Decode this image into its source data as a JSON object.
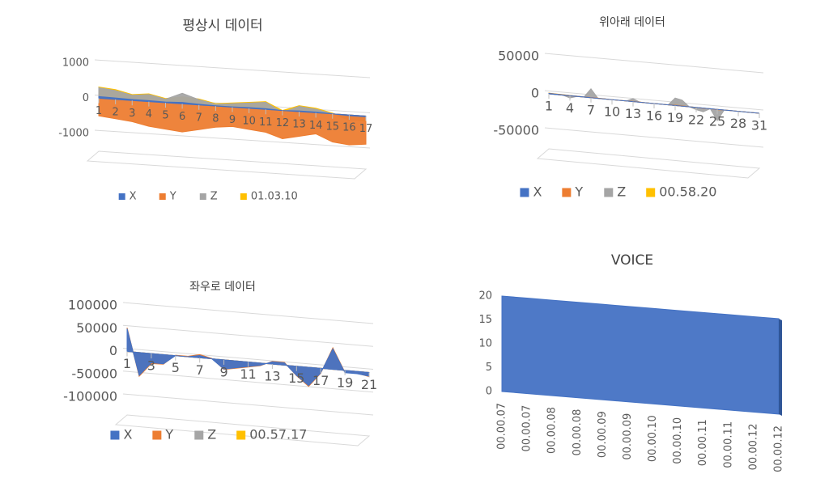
{
  "chart_data": [
    {
      "type": "area",
      "title": "평상시 데이터",
      "categories": [
        1,
        2,
        3,
        4,
        5,
        6,
        7,
        8,
        9,
        10,
        11,
        12,
        13,
        14,
        15,
        16,
        17
      ],
      "series": [
        {
          "name": "X",
          "color": "#4472c4",
          "values": [
            50,
            40,
            30,
            30,
            20,
            40,
            20,
            10,
            10,
            20,
            20,
            0,
            20,
            20,
            0,
            -20,
            -20
          ]
        },
        {
          "name": "Y",
          "color": "#ed7d31",
          "values": [
            -500,
            -550,
            -600,
            -700,
            -750,
            -800,
            -700,
            -600,
            -550,
            -600,
            -650,
            -800,
            -700,
            -600,
            -800,
            -850,
            -800
          ]
        },
        {
          "name": "Z",
          "color": "#a5a5a5",
          "values": [
            300,
            250,
            150,
            200,
            100,
            300,
            150,
            50,
            100,
            150,
            200,
            -50,
            150,
            100,
            0,
            -150,
            -100
          ]
        },
        {
          "name": "01.03.10",
          "color": "#ffc000",
          "values": [
            320,
            280,
            170,
            220,
            120,
            200,
            170,
            70,
            120,
            170,
            220,
            0,
            170,
            130,
            20,
            -120,
            -150
          ]
        }
      ],
      "ylim": [
        -1000,
        1000
      ],
      "yticks": [
        -1000,
        0,
        1000
      ],
      "grid": true,
      "legend": "bottom"
    },
    {
      "type": "area",
      "title": "위아래 데이터",
      "categories": [
        1,
        null,
        null,
        4,
        null,
        null,
        7,
        null,
        null,
        10,
        null,
        null,
        13,
        null,
        null,
        16,
        null,
        null,
        19,
        null,
        null,
        22,
        null,
        null,
        25,
        null,
        null,
        28,
        null,
        null,
        31
      ],
      "series": [
        {
          "name": "X",
          "color": "#4472c4",
          "values": [
            500,
            400,
            300,
            200,
            200,
            100,
            100,
            0,
            0,
            0,
            0,
            0,
            0,
            0,
            0,
            0,
            0,
            0,
            0,
            0,
            0,
            0,
            0,
            0,
            0,
            0,
            0,
            0,
            0,
            0,
            0
          ]
        },
        {
          "name": "Y",
          "color": "#ed7d31",
          "values": [
            800,
            600,
            500,
            300,
            300,
            200,
            300,
            200,
            100,
            0,
            0,
            0,
            300,
            100,
            0,
            0,
            0,
            0,
            500,
            400,
            0,
            0,
            -300,
            0,
            -500,
            0,
            0,
            0,
            0,
            0,
            0
          ]
        },
        {
          "name": "Z",
          "color": "#a5a5a5",
          "values": [
            0,
            0,
            0,
            -3000,
            0,
            0,
            12000,
            0,
            0,
            0,
            0,
            0,
            4000,
            0,
            0,
            0,
            0,
            0,
            10000,
            8000,
            0,
            -3000,
            -5000,
            0,
            -15000,
            0,
            0,
            0,
            0,
            0,
            0
          ]
        },
        {
          "name": "00.58.20",
          "color": "#ffc000",
          "values": [
            1000,
            800,
            600,
            400,
            300,
            200,
            400,
            200,
            100,
            0,
            0,
            0,
            500,
            100,
            0,
            0,
            0,
            0,
            2000,
            1500,
            0,
            0,
            -500,
            0,
            -800,
            0,
            0,
            0,
            0,
            0,
            0
          ]
        }
      ],
      "ylim": [
        -50000,
        50000
      ],
      "yticks": [
        -50000,
        0,
        50000
      ],
      "grid": true,
      "legend": "bottom"
    },
    {
      "type": "area",
      "title": "좌우로 데이터",
      "categories": [
        1,
        null,
        3,
        null,
        5,
        null,
        7,
        null,
        9,
        null,
        11,
        null,
        13,
        null,
        15,
        null,
        17,
        null,
        19,
        null,
        21
      ],
      "series": [
        {
          "name": "X",
          "color": "#4472c4",
          "values": [
            50000,
            -50000,
            -20000,
            -20000,
            0,
            0,
            5000,
            0,
            -20000,
            -15000,
            -10000,
            -5000,
            5000,
            5000,
            -20000,
            -40000,
            -10000,
            45000,
            -5000,
            -5000,
            -8000
          ]
        },
        {
          "name": "Y",
          "color": "#ed7d31",
          "values": [
            52000,
            -52000,
            -22000,
            -21000,
            1000,
            1000,
            7000,
            1000,
            -21000,
            -16000,
            -11000,
            -6000,
            6000,
            6000,
            -21000,
            -42000,
            -11000,
            47000,
            -4000,
            -4000,
            -9000
          ]
        },
        {
          "name": "Z",
          "color": "#a5a5a5",
          "values": [
            1000,
            -1000,
            -500,
            -500,
            0,
            0,
            500,
            0,
            -500,
            -500,
            -300,
            -200,
            300,
            200,
            -500,
            -800,
            -300,
            800,
            -200,
            -200,
            -300
          ]
        },
        {
          "name": "00.57.17",
          "color": "#ffc000",
          "values": [
            2000,
            -1500,
            -800,
            -600,
            100,
            100,
            600,
            100,
            -600,
            -500,
            -400,
            -300,
            400,
            300,
            -600,
            -900,
            -400,
            1200,
            -300,
            -300,
            -400
          ]
        }
      ],
      "ylim": [
        -100000,
        100000
      ],
      "yticks": [
        -100000,
        -50000,
        0,
        50000,
        100000
      ],
      "grid": true,
      "legend": "bottom"
    },
    {
      "type": "area",
      "title": "VOICE",
      "categories": [
        "00.00.07",
        "00.00.07",
        "00.00.08",
        "00.00.08",
        "00.00.09",
        "00.00.09",
        "00.00.10",
        "00.00.10",
        "00.00.11",
        "00.00.11",
        "00.00.12",
        "00.00.12"
      ],
      "series": [
        {
          "name": "VOICE",
          "color": "#4472c4",
          "values": [
            20,
            20,
            20,
            20,
            20,
            20,
            20,
            20,
            20,
            20,
            20,
            20
          ]
        }
      ],
      "ylim": [
        0,
        20
      ],
      "yticks": [
        0,
        5,
        10,
        15,
        20
      ],
      "grid": false
    }
  ]
}
